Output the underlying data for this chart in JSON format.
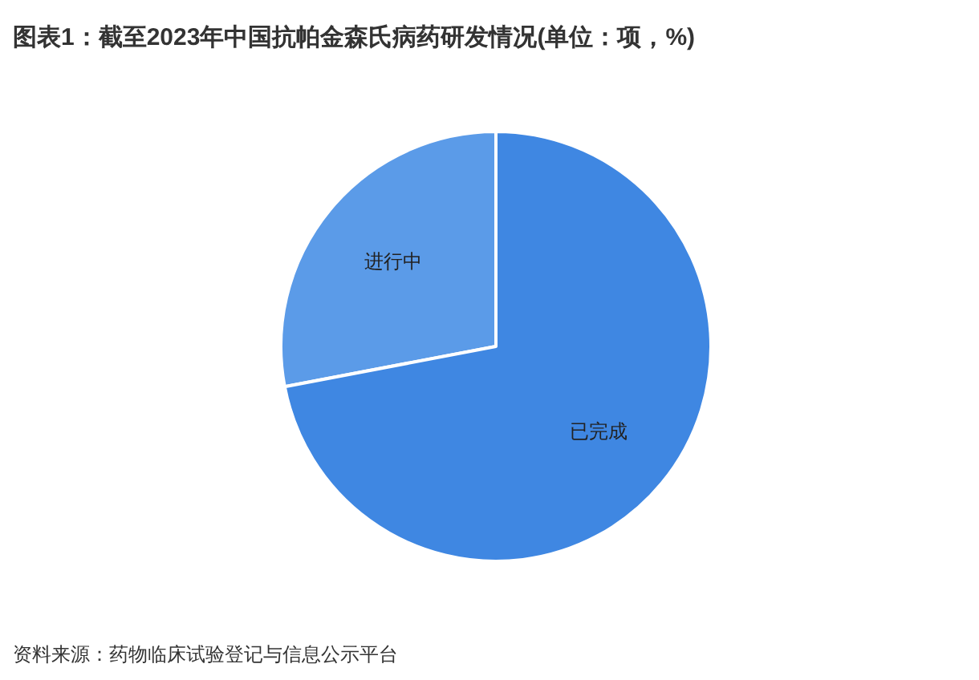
{
  "chart_data": {
    "type": "pie",
    "title": "图表1：截至2023年中国抗帕金森氏病药研发情况(单位：项，%)",
    "categories": [
      "进行中",
      "已完成"
    ],
    "values": [
      28,
      72
    ],
    "colors": [
      "#5b9be8",
      "#3f87e2"
    ],
    "annotations": [
      "资料来源：药物临床试验登记与信息公示平台"
    ]
  }
}
